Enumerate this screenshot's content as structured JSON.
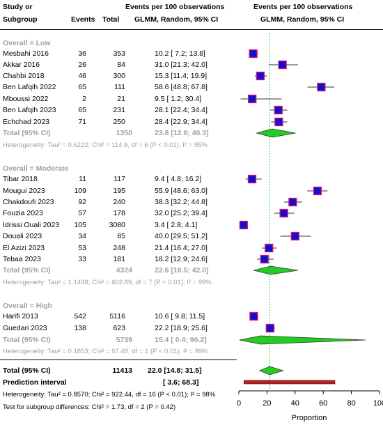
{
  "header": {
    "study_line1": "Study or",
    "study_line2": "Subgroup",
    "events": "Events",
    "total": "Total",
    "effect_line1": "Events per 100 observations",
    "effect_line2": "GLMM, Random, 95% CI",
    "plot_line1": "Events per 100 observations",
    "plot_line2": "GLMM, Random, 95% CI"
  },
  "chart_data": {
    "type": "forest",
    "x_axis": {
      "label": "Proportion",
      "ticks": [
        0,
        20,
        40,
        60,
        80,
        100
      ],
      "range": [
        0,
        100
      ],
      "reference_line": 22.0
    },
    "colors": {
      "study_square": "#1010cc",
      "square_border": "#e0107a",
      "diamond": "#22cc22",
      "reference_line": "#22cc22",
      "prediction_bar": "#b22222"
    },
    "subgroups": [
      {
        "title": "Overall = Low",
        "studies": [
          {
            "name": "Mesbahi 2016",
            "events": "36",
            "total": "353",
            "est": 10.2,
            "lo": 7.2,
            "hi": 13.8,
            "ci_text": "10.2 [ 7.2; 13.8]"
          },
          {
            "name": "Akkar 2016",
            "events": "26",
            "total": "84",
            "est": 31.0,
            "lo": 21.3,
            "hi": 42.0,
            "ci_text": "31.0 [21.3; 42.0]"
          },
          {
            "name": "Chahbi 2018",
            "events": "46",
            "total": "300",
            "est": 15.3,
            "lo": 11.4,
            "hi": 19.9,
            "ci_text": "15.3 [11.4; 19.9]"
          },
          {
            "name": "Ben Lafqih 2022",
            "events": "65",
            "total": "111",
            "est": 58.6,
            "lo": 48.8,
            "hi": 67.8,
            "ci_text": "58.6 [48.8; 67.8]"
          },
          {
            "name": "Mboussi 2022",
            "events": "2",
            "total": "21",
            "est": 9.5,
            "lo": 1.2,
            "hi": 30.4,
            "ci_text": "9.5 [ 1.2; 30.4]"
          },
          {
            "name": "Ben Lafqih 2023",
            "events": "65",
            "total": "231",
            "est": 28.1,
            "lo": 22.4,
            "hi": 34.4,
            "ci_text": "28.1 [22.4; 34.4]"
          },
          {
            "name": "Echchad 2023",
            "events": "71",
            "total": "250",
            "est": 28.4,
            "lo": 22.9,
            "hi": 34.4,
            "ci_text": "28.4 [22.9; 34.4]"
          }
        ],
        "summary": {
          "label": "Total (95% CI)",
          "total": "1350",
          "est": 23.8,
          "lo": 12.6,
          "hi": 40.3,
          "ci_text": "23.8 [12.6; 40.3]"
        },
        "heterogeneity": "Heterogeneity: Tau² = 0.6222; Chi² = 114.9, df = 6 (P < 0.01); I² = 95%"
      },
      {
        "title": "Overall = Moderate",
        "studies": [
          {
            "name": "Tibar 2018",
            "events": "11",
            "total": "117",
            "est": 9.4,
            "lo": 4.8,
            "hi": 16.2,
            "ci_text": "9.4 [ 4.8; 16.2]"
          },
          {
            "name": "Mougui 2023",
            "events": "109",
            "total": "195",
            "est": 55.9,
            "lo": 48.6,
            "hi": 63.0,
            "ci_text": "55.9 [48.6; 63.0]"
          },
          {
            "name": "Chakdoufi 2023",
            "events": "92",
            "total": "240",
            "est": 38.3,
            "lo": 32.2,
            "hi": 44.8,
            "ci_text": "38.3 [32.2; 44.8]"
          },
          {
            "name": "Fouzia 2023",
            "events": "57",
            "total": "178",
            "est": 32.0,
            "lo": 25.2,
            "hi": 39.4,
            "ci_text": "32.0 [25.2; 39.4]"
          },
          {
            "name": "Idrissi Ouali 2023",
            "events": "105",
            "total": "3080",
            "est": 3.4,
            "lo": 2.8,
            "hi": 4.1,
            "ci_text": "3.4 [ 2.8; 4.1]"
          },
          {
            "name": "Douali 2023",
            "events": "34",
            "total": "85",
            "est": 40.0,
            "lo": 29.5,
            "hi": 51.2,
            "ci_text": "40.0 [29.5; 51.2]"
          },
          {
            "name": "El Azizi 2023",
            "events": "53",
            "total": "248",
            "est": 21.4,
            "lo": 16.4,
            "hi": 27.0,
            "ci_text": "21.4 [16.4; 27.0]"
          },
          {
            "name": "Tebaa 2023",
            "events": "33",
            "total": "181",
            "est": 18.2,
            "lo": 12.9,
            "hi": 24.6,
            "ci_text": "18.2 [12.9; 24.6]"
          }
        ],
        "summary": {
          "label": "Total (95% CI)",
          "total": "4324",
          "est": 22.6,
          "lo": 10.5,
          "hi": 42.0,
          "ci_text": "22.6 [10.5; 42.0]"
        },
        "heterogeneity": "Heterogeneity: Tau² = 1.1498; Chi² = 602.89, df = 7 (P < 0.01); I² = 99%"
      },
      {
        "title": "Overall = High",
        "studies": [
          {
            "name": "Harifi 2013",
            "events": "542",
            "total": "5116",
            "est": 10.6,
            "lo": 9.8,
            "hi": 11.5,
            "ci_text": "10.6 [ 9.8; 11.5]"
          },
          {
            "name": "Guedari 2023",
            "events": "138",
            "total": "623",
            "est": 22.2,
            "lo": 18.9,
            "hi": 25.6,
            "ci_text": "22.2 [18.9; 25.6]"
          }
        ],
        "summary": {
          "label": "Total (95% CI)",
          "total": "5739",
          "est": 15.4,
          "lo": 0.4,
          "hi": 90.2,
          "ci_text": "15.4 [ 0.4; 90.2]"
        },
        "heterogeneity": "Heterogeneity: Tau² = 0.1853; Chi² = 67.48, df = 1 (P < 0.01); I² = 99%"
      }
    ],
    "overall": {
      "label": "Total (95% CI)",
      "total": "11413",
      "est": 22.0,
      "lo": 14.8,
      "hi": 31.5,
      "ci_text": "22.0 [14.8; 31.5]"
    },
    "prediction_interval": {
      "label": "Prediction interval",
      "lo": 3.6,
      "hi": 68.3,
      "ci_text": "[ 3.6; 68.3]"
    },
    "overall_heterogeneity": "Heterogeneity: Tau² = 0.8570; Chi² = 922.44, df = 16 (P < 0.01); I² = 98%",
    "subgroup_test": "Test for subgroup differences: Chi² = 1.73, df = 2 (P = 0.42)"
  }
}
